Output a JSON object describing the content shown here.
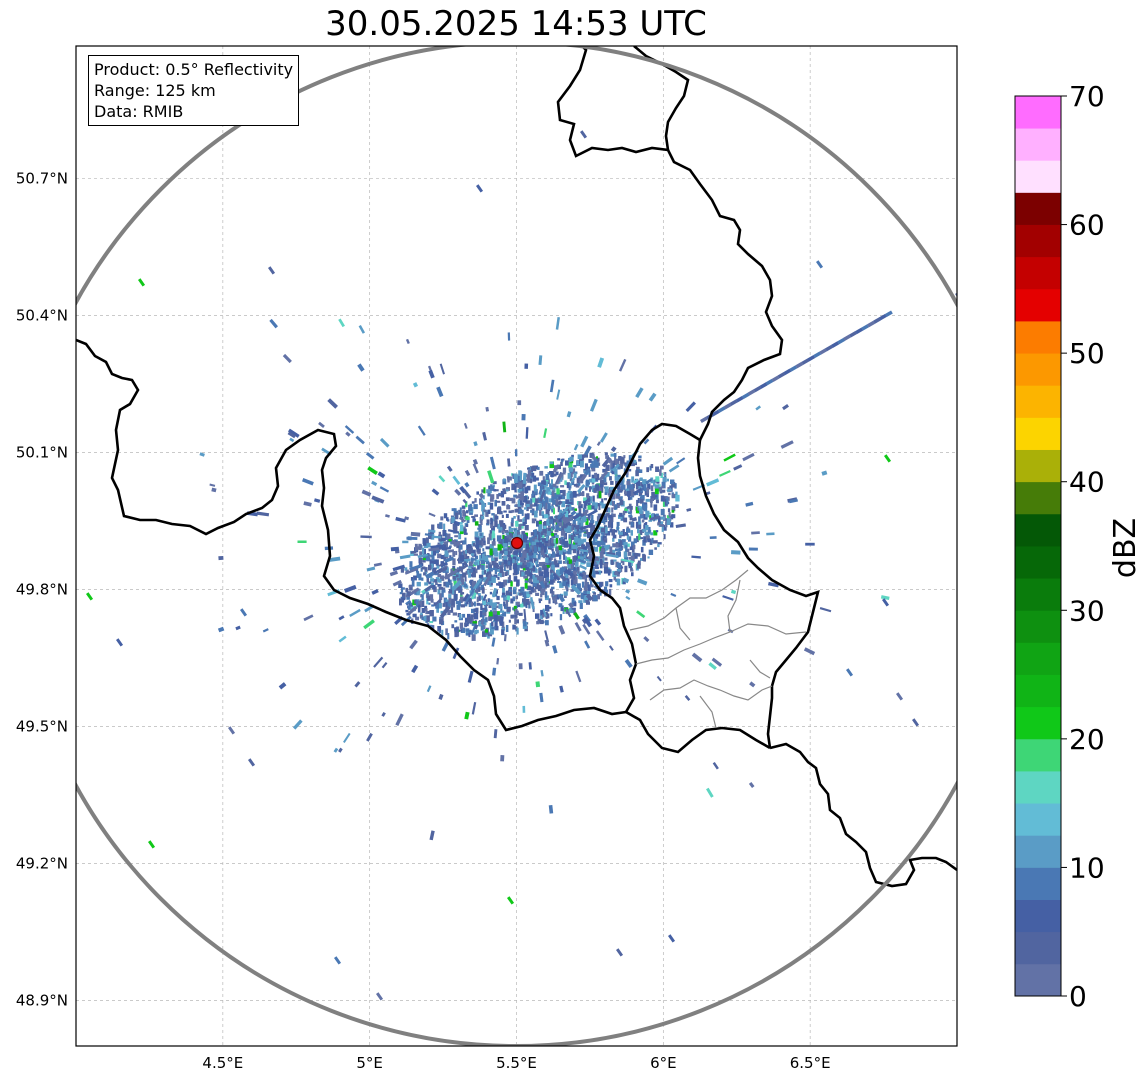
{
  "title": "30.05.2025 14:53 UTC",
  "info": {
    "product": "Product: 0.5° Reflectivity",
    "range": "Range: 125 km",
    "source": "Data: RMIB"
  },
  "map": {
    "lon_range": [
      4.0,
      7.0
    ],
    "lat_range": [
      48.8,
      50.99
    ],
    "lon_ticks": [
      {
        "value": 4.5,
        "label": "4.5°E"
      },
      {
        "value": 5.0,
        "label": "5°E"
      },
      {
        "value": 5.5,
        "label": "5.5°E"
      },
      {
        "value": 6.0,
        "label": "6°E"
      },
      {
        "value": 6.5,
        "label": "6.5°E"
      }
    ],
    "lat_ticks": [
      {
        "value": 50.7,
        "label": "50.7°N"
      },
      {
        "value": 50.4,
        "label": "50.4°N"
      },
      {
        "value": 50.1,
        "label": "50.1°N"
      },
      {
        "value": 49.8,
        "label": "49.8°N"
      },
      {
        "value": 49.5,
        "label": "49.5°N"
      },
      {
        "value": 49.2,
        "label": "49.2°N"
      },
      {
        "value": 48.9,
        "label": "48.9°N"
      }
    ],
    "grid": true,
    "radar_site": {
      "lon": 5.505,
      "lat": 49.914,
      "color": "#e01010"
    },
    "range_ring_color": "#808080"
  },
  "colorbar": {
    "label": "dBZ",
    "min": 0,
    "max": 70,
    "step": 2.5,
    "tick_values": [
      "0",
      "10",
      "20",
      "30",
      "40",
      "50",
      "60",
      "70"
    ],
    "colors": [
      "#6272a6",
      "#5165a0",
      "#4560a4",
      "#4a78b4",
      "#5a9cc6",
      "#62bcd6",
      "#5ed6c2",
      "#3ed676",
      "#10c818",
      "#10b416",
      "#10a414",
      "#0e9010",
      "#0a7c0c",
      "#066808",
      "#045806",
      "#467c08",
      "#aab008",
      "#fcd400",
      "#fcb400",
      "#fc9800",
      "#fc7c00",
      "#e40000",
      "#c40000",
      "#a20000",
      "#7c0000",
      "#ffe0ff",
      "#ffb0ff",
      "#ff6cff",
      "#ee36ee"
    ]
  }
}
